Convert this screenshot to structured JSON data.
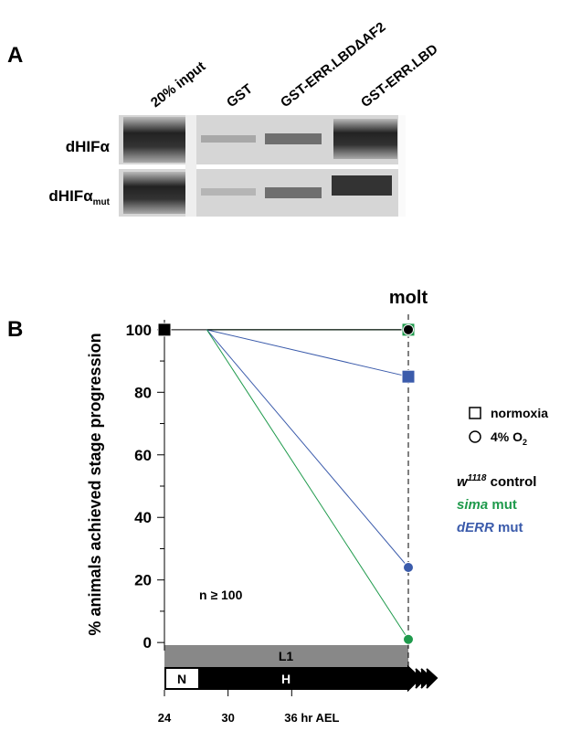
{
  "panel_a": {
    "label": "A",
    "lanes": [
      "20% input",
      "GST",
      "GST-ERR.LBDΔAF2",
      "GST-ERR.LBD"
    ],
    "rows": [
      {
        "label": "dHIFα"
      },
      {
        "label": "dHIFα",
        "sub": "mut"
      }
    ]
  },
  "chart_data": {
    "type": "line",
    "panel_label": "B",
    "title": "molt",
    "ylabel": "% animals achieved stage progression",
    "annotation": "n ≥ 100",
    "stages": {
      "top": "L1",
      "left": "N",
      "right": "H"
    },
    "xlim": [
      24,
      47
    ],
    "xticks": [
      24,
      30,
      {
        "value": 36,
        "label": "36 hr AEL"
      }
    ],
    "ylim": [
      -2,
      102
    ],
    "yticks": [
      0,
      20,
      40,
      60,
      80,
      100
    ],
    "yminorticks": [
      10,
      30,
      50,
      70,
      90
    ],
    "series": [
      {
        "color": "#000000",
        "marker": "square",
        "x": [
          24,
          28,
          47
        ],
        "values": [
          100,
          100,
          100
        ]
      },
      {
        "color": "#1f9a4c",
        "marker": "square",
        "x": [
          28,
          47
        ],
        "values": [
          100,
          100
        ]
      },
      {
        "color": "#3b5bab",
        "marker": "square",
        "x": [
          28,
          47
        ],
        "values": [
          100,
          85
        ]
      },
      {
        "color": "#000000",
        "marker": "circle",
        "x": [
          28,
          47
        ],
        "values": [
          100,
          100
        ]
      },
      {
        "color": "#3b5bab",
        "marker": "circle",
        "x": [
          28,
          47
        ],
        "values": [
          100,
          24
        ]
      },
      {
        "color": "#1f9a4c",
        "marker": "circle",
        "x": [
          28,
          47
        ],
        "values": [
          100,
          1
        ]
      }
    ],
    "legend": {
      "markers": [
        {
          "shape": "square",
          "label": "normoxia"
        },
        {
          "shape": "circle",
          "label": "4% O",
          "sub": "2"
        }
      ],
      "genotypes": [
        {
          "name": "w",
          "sup": "1118",
          "rest": " control",
          "color": "#000000"
        },
        {
          "name": "sima",
          "rest": " mut",
          "color": "#1f9a4c"
        },
        {
          "name": "dERR",
          "rest": " mut",
          "color": "#3b5bab"
        }
      ]
    }
  }
}
